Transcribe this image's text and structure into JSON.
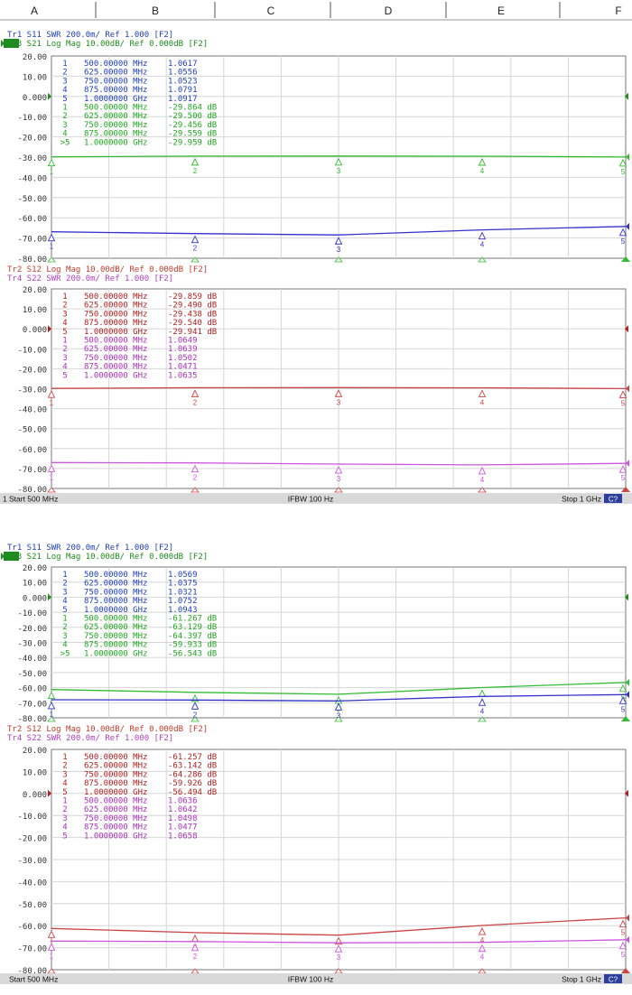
{
  "column_labels": [
    "A",
    "B",
    "C",
    "D",
    "E",
    "F"
  ],
  "chart_data": [
    {
      "type": "line",
      "trace_headers": [
        {
          "text": "Tr1 S11 SWR 200.0m/ Ref 1.000 [F2]",
          "color": "#1f3fbf"
        },
        {
          "text": "Tr3 S21 Log Mag 10.00dB/ Ref 0.000dB [F2]",
          "color": "#1f8c1f",
          "active": true
        }
      ],
      "y_ticks": [
        "20.00",
        "10.00",
        "0.000",
        "-10.00",
        "-20.00",
        "-30.00",
        "-40.00",
        "-50.00",
        "-60.00",
        "-70.00",
        "-80.00"
      ],
      "ylim": [
        -80,
        20
      ],
      "marker_lines": [
        {
          "num": "1",
          "x": "500.00000 MHz",
          "val": "1.0617",
          "color": "#1f3fbf"
        },
        {
          "num": "2",
          "x": "625.00000 MHz",
          "val": "1.0556",
          "color": "#1f3fbf"
        },
        {
          "num": "3",
          "x": "750.00000 MHz",
          "val": "1.0523",
          "color": "#1f3fbf"
        },
        {
          "num": "4",
          "x": "875.00000 MHz",
          "val": "1.0791",
          "color": "#1f3fbf"
        },
        {
          "num": "5",
          "x": "1.0000000 GHz",
          "val": "1.0917",
          "color": "#1f3fbf"
        },
        {
          "num": "1",
          "x": "500.00000 MHz",
          "val": "-29.864 dB",
          "color": "#1fa61f"
        },
        {
          "num": "2",
          "x": "625.00000 MHz",
          "val": "-29.500 dB",
          "color": "#1fa61f"
        },
        {
          "num": "3",
          "x": "750.00000 MHz",
          "val": "-29.456 dB",
          "color": "#1fa61f"
        },
        {
          "num": "4",
          "x": "875.00000 MHz",
          "val": "-29.559 dB",
          "color": "#1fa61f"
        },
        {
          "num": ">5",
          "x": "1.0000000 GHz",
          "val": "-29.959 dB",
          "color": "#1fa61f"
        }
      ],
      "series": [
        {
          "name": "S21",
          "color": "#33bb33",
          "y": [
            -29.864,
            -29.5,
            -29.456,
            -29.559,
            -29.959
          ]
        },
        {
          "name": "S11",
          "color": "#3333cc",
          "y": [
            -66.9,
            -67.8,
            -68.5,
            -66.0,
            -64.3
          ]
        }
      ],
      "show_start_stop": false
    },
    {
      "type": "line",
      "trace_headers": [
        {
          "text": "Tr2 S12 Log Mag 10.00dB/ Ref 0.000dB [F2]",
          "color": "#c43c2c"
        },
        {
          "text": "Tr4 S22 SWR 200.0m/ Ref 1.000 [F2]",
          "color": "#b040c0"
        }
      ],
      "y_ticks": [
        "20.00",
        "10.00",
        "0.000",
        "-10.00",
        "-20.00",
        "-30.00",
        "-40.00",
        "-50.00",
        "-60.00",
        "-70.00",
        "-80.00"
      ],
      "ylim": [
        -80,
        20
      ],
      "marker_lines": [
        {
          "num": "1",
          "x": "500.00000 MHz",
          "val": "-29.859 dB",
          "color": "#b02020"
        },
        {
          "num": "2",
          "x": "625.00000 MHz",
          "val": "-29.490 dB",
          "color": "#b02020"
        },
        {
          "num": "3",
          "x": "750.00000 MHz",
          "val": "-29.438 dB",
          "color": "#b02020"
        },
        {
          "num": "4",
          "x": "875.00000 MHz",
          "val": "-29.540 dB",
          "color": "#b02020"
        },
        {
          "num": "5",
          "x": "1.0000000 GHz",
          "val": "-29.941 dB",
          "color": "#b02020"
        },
        {
          "num": "1",
          "x": "500.00000 MHz",
          "val": "1.0649",
          "color": "#a830b8"
        },
        {
          "num": "2",
          "x": "625.00000 MHz",
          "val": "1.0639",
          "color": "#a830b8"
        },
        {
          "num": "3",
          "x": "750.00000 MHz",
          "val": "1.0502",
          "color": "#a830b8"
        },
        {
          "num": "4",
          "x": "875.00000 MHz",
          "val": "1.0471",
          "color": "#a830b8"
        },
        {
          "num": "5",
          "x": "1.0000000 GHz",
          "val": "1.0635",
          "color": "#a830b8"
        }
      ],
      "series": [
        {
          "name": "S12",
          "color": "#cc4444",
          "y": [
            -29.859,
            -29.49,
            -29.438,
            -29.54,
            -29.941
          ]
        },
        {
          "name": "S22",
          "color": "#cc55dd",
          "y": [
            -67.0,
            -67.2,
            -67.8,
            -68.2,
            -67.4
          ]
        }
      ],
      "show_start_stop": true
    },
    {
      "type": "line",
      "trace_headers": [
        {
          "text": "Tr1 S11 SWR 200.0m/ Ref 1.000 [F2]",
          "color": "#1f3fbf"
        },
        {
          "text": "Tr3 S21 Log Mag 10.00dB/ Ref 0.000dB [F2]",
          "color": "#1f8c1f",
          "active": true
        }
      ],
      "y_ticks": [
        "20.00",
        "10.00",
        "0.000",
        "-10.00",
        "-20.00",
        "-30.00",
        "-40.00",
        "-50.00",
        "-60.00",
        "-70.00",
        "-80.00"
      ],
      "ylim": [
        -80,
        20
      ],
      "marker_lines": [
        {
          "num": "1",
          "x": "500.00000 MHz",
          "val": "1.0569",
          "color": "#1f3fbf"
        },
        {
          "num": "2",
          "x": "625.00000 MHz",
          "val": "1.0375",
          "color": "#1f3fbf"
        },
        {
          "num": "3",
          "x": "750.00000 MHz",
          "val": "1.0321",
          "color": "#1f3fbf"
        },
        {
          "num": "4",
          "x": "875.00000 MHz",
          "val": "1.0752",
          "color": "#1f3fbf"
        },
        {
          "num": "5",
          "x": "1.0000000 GHz",
          "val": "1.0943",
          "color": "#1f3fbf"
        },
        {
          "num": "1",
          "x": "500.00000 MHz",
          "val": "-61.267 dB",
          "color": "#1fa61f"
        },
        {
          "num": "2",
          "x": "625.00000 MHz",
          "val": "-63.129 dB",
          "color": "#1fa61f"
        },
        {
          "num": "3",
          "x": "750.00000 MHz",
          "val": "-64.397 dB",
          "color": "#1fa61f"
        },
        {
          "num": "4",
          "x": "875.00000 MHz",
          "val": "-59.933 dB",
          "color": "#1fa61f"
        },
        {
          "num": ">5",
          "x": "1.0000000 GHz",
          "val": "-56.543 dB",
          "color": "#1fa61f"
        }
      ],
      "series": [
        {
          "name": "S21",
          "color": "#33bb33",
          "y": [
            -61.267,
            -63.129,
            -64.397,
            -59.933,
            -56.543
          ]
        },
        {
          "name": "S11",
          "color": "#3333cc",
          "y": [
            -68.0,
            -68.2,
            -68.8,
            -65.8,
            -64.6
          ]
        }
      ],
      "show_start_stop": false
    },
    {
      "type": "line",
      "trace_headers": [
        {
          "text": "Tr2 S12 Log Mag 10.00dB/ Ref 0.000dB [F2]",
          "color": "#c43c2c"
        },
        {
          "text": "Tr4 S22 SWR 200.0m/ Ref 1.000 [F2]",
          "color": "#b040c0"
        }
      ],
      "y_ticks": [
        "20.00",
        "10.00",
        "0.000",
        "-10.00",
        "-20.00",
        "-30.00",
        "-40.00",
        "-50.00",
        "-60.00",
        "-70.00",
        "-80.00"
      ],
      "ylim": [
        -80,
        20
      ],
      "marker_lines": [
        {
          "num": "1",
          "x": "500.00000 MHz",
          "val": "-61.257 dB",
          "color": "#b02020"
        },
        {
          "num": "2",
          "x": "625.00000 MHz",
          "val": "-63.142 dB",
          "color": "#b02020"
        },
        {
          "num": "3",
          "x": "750.00000 MHz",
          "val": "-64.286 dB",
          "color": "#b02020"
        },
        {
          "num": "4",
          "x": "875.00000 MHz",
          "val": "-59.926 dB",
          "color": "#b02020"
        },
        {
          "num": "5",
          "x": "1.0000000 GHz",
          "val": "-56.494 dB",
          "color": "#b02020"
        },
        {
          "num": "1",
          "x": "500.00000 MHz",
          "val": "1.0636",
          "color": "#a830b8"
        },
        {
          "num": "2",
          "x": "625.00000 MHz",
          "val": "1.0642",
          "color": "#a830b8"
        },
        {
          "num": "3",
          "x": "750.00000 MHz",
          "val": "1.0498",
          "color": "#a830b8"
        },
        {
          "num": "4",
          "x": "875.00000 MHz",
          "val": "1.0477",
          "color": "#a830b8"
        },
        {
          "num": "5",
          "x": "1.0000000 GHz",
          "val": "1.0658",
          "color": "#a830b8"
        }
      ],
      "series": [
        {
          "name": "S12",
          "color": "#cc4444",
          "y": [
            -61.257,
            -63.142,
            -64.286,
            -59.926,
            -56.494
          ]
        },
        {
          "name": "S22",
          "color": "#cc55dd",
          "y": [
            -67.0,
            -67.2,
            -67.8,
            -67.6,
            -66.4
          ]
        }
      ],
      "show_start_stop": true
    }
  ],
  "status_bars": [
    {
      "prefix": "1",
      "start": "Start 500 MHz",
      "ifbw": "IFBW 100 Hz",
      "stop": "Stop 1 GHz",
      "channel": "C?"
    },
    {
      "prefix": "",
      "start": "Start 500 MHz",
      "ifbw": "IFBW 100 Hz",
      "stop": "Stop 1 GHz",
      "channel": "C?"
    }
  ],
  "x_points_mhz": [
    500,
    625,
    750,
    875,
    1000
  ],
  "xlim": [
    500,
    1000
  ],
  "colors": {
    "grid": "#d6d6d6",
    "status_bg": "#d9d9d9",
    "channel_badge": "#2a3f9e"
  }
}
